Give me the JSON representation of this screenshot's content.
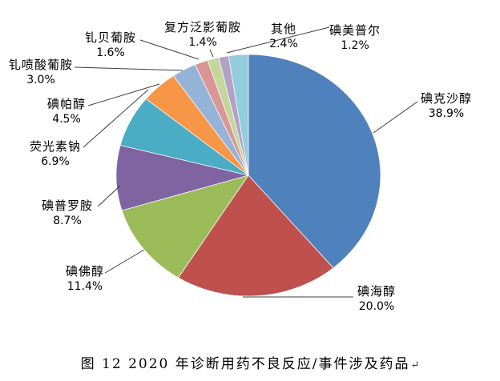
{
  "figure": {
    "caption": "图 12  2020 年诊断用药不良反应/事件涉及药品",
    "return_mark": "↵"
  },
  "chart_data": {
    "type": "pie",
    "title": "图 12  2020 年诊断用药不良反应/事件涉及药品",
    "value_format": "percent",
    "legend_position": "none",
    "labels_style": "callout-with-leader-lines",
    "slices": [
      {
        "name": "碘克沙醇",
        "value": 38.9,
        "label": "38.9%",
        "color": "#4F81BD"
      },
      {
        "name": "碘海醇",
        "value": 20.0,
        "label": "20.0%",
        "color": "#C0504D"
      },
      {
        "name": "碘佛醇",
        "value": 11.4,
        "label": "11.4%",
        "color": "#9BBB59"
      },
      {
        "name": "碘普罗胺",
        "value": 8.7,
        "label": "8.7%",
        "color": "#8064A2"
      },
      {
        "name": "荧光素钠",
        "value": 6.9,
        "label": "6.9%",
        "color": "#4BACC6"
      },
      {
        "name": "碘帕醇",
        "value": 4.5,
        "label": "4.5%",
        "color": "#F79646"
      },
      {
        "name": "钆喷酸葡胺",
        "value": 3.0,
        "label": "3.0%",
        "color": "#95B3D7"
      },
      {
        "name": "钆贝葡胺",
        "value": 1.6,
        "label": "1.6%",
        "color": "#D99694"
      },
      {
        "name": "复方泛影葡胺",
        "value": 1.4,
        "label": "1.4%",
        "color": "#C3D69B"
      },
      {
        "name": "碘美普尔",
        "value": 1.2,
        "label": "1.2%",
        "color": "#B2A1C7"
      },
      {
        "name": "其他",
        "value": 2.4,
        "label": "2.4%",
        "color": "#92CDDC"
      }
    ]
  }
}
